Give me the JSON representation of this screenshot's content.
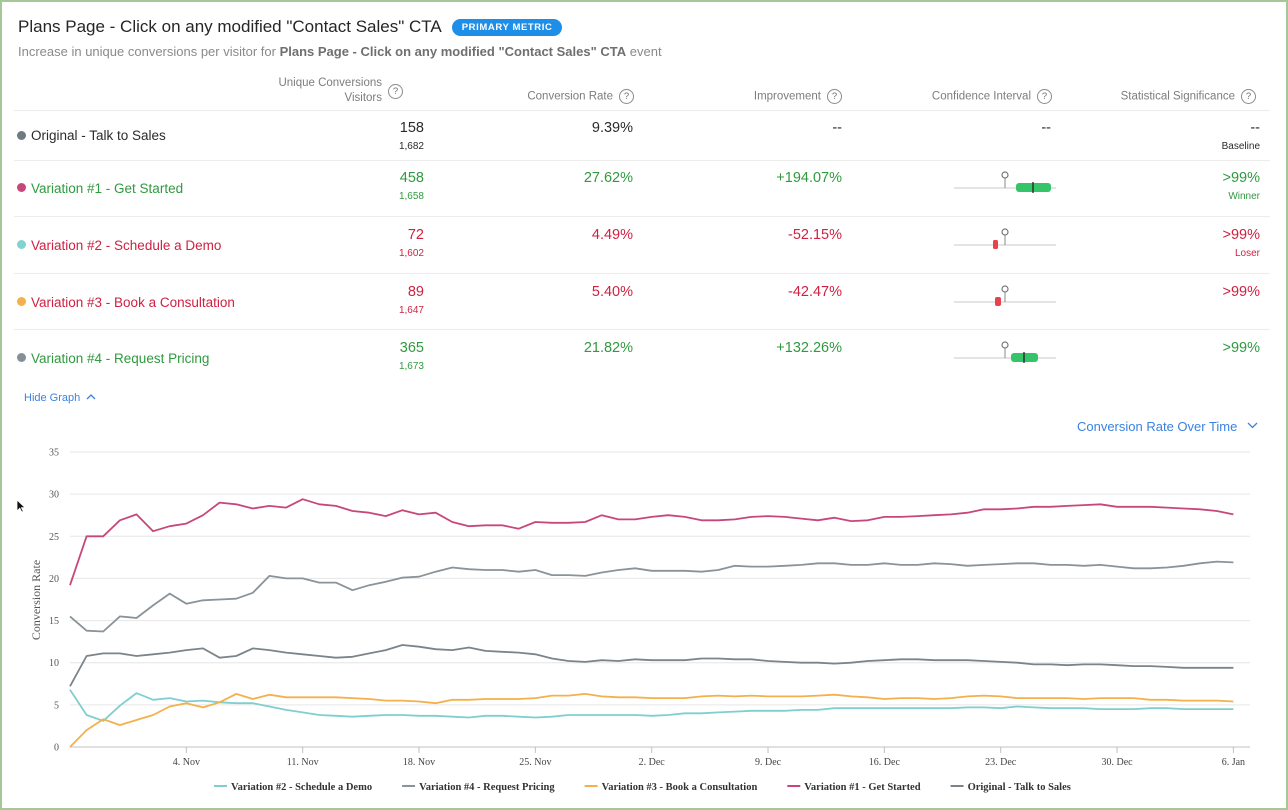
{
  "header": {
    "title": "Plans Page - Click on any modified \"Contact Sales\" CTA",
    "badge": "PRIMARY METRIC",
    "subtitle_prefix": "Increase in unique conversions per visitor for ",
    "subtitle_bold": "Plans Page - Click on any modified \"Contact Sales\" CTA",
    "subtitle_suffix": " event"
  },
  "columns": {
    "conversions_line1": "Unique Conversions",
    "conversions_line2": "Visitors",
    "rate": "Conversion Rate",
    "improvement": "Improvement",
    "ci": "Confidence Interval",
    "significance": "Statistical Significance",
    "help": "?"
  },
  "rows": [
    {
      "name": "Original - Talk to Sales",
      "dot": "#6e7b80",
      "color": "#2b2b2b",
      "conversions": "158",
      "visitors": "1,682",
      "rate": "9.39%",
      "improvement": "--",
      "ci": "--",
      "significance": "--",
      "verdict": "Baseline",
      "verdict_color": "#2b2b2b",
      "sub_color": "#2b2b2b"
    },
    {
      "name": "Variation #1 - Get Started",
      "dot": "#c8477a",
      "color": "#2f9a3f",
      "conversions": "458",
      "visitors": "1,658",
      "rate": "27.62%",
      "improvement": "+194.07%",
      "significance": ">99%",
      "verdict": "Winner",
      "verdict_color": "#2f9a3f",
      "sub_color": "#2f9a3f"
    },
    {
      "name": "Variation #2 - Schedule a Demo",
      "dot": "#7fd3d3",
      "color": "#cf2142",
      "conversions": "72",
      "visitors": "1,602",
      "rate": "4.49%",
      "improvement": "-52.15%",
      "significance": ">99%",
      "verdict": "Loser",
      "verdict_color": "#cf2142",
      "sub_color": "#cf2142"
    },
    {
      "name": "Variation #3 - Book a Consultation",
      "dot": "#f4b04a",
      "color": "#cf2142",
      "conversions": "89",
      "visitors": "1,647",
      "rate": "5.40%",
      "improvement": "-42.47%",
      "significance": ">99%",
      "verdict": "",
      "verdict_color": "#cf2142",
      "sub_color": "#cf2142"
    },
    {
      "name": "Variation #4 - Request Pricing",
      "dot": "#868e96",
      "color": "#2f9a3f",
      "conversions": "365",
      "visitors": "1,673",
      "rate": "21.82%",
      "improvement": "+132.26%",
      "significance": ">99%",
      "verdict": "",
      "verdict_color": "#2f9a3f",
      "sub_color": "#2f9a3f"
    }
  ],
  "controls": {
    "hide_graph": "Hide Graph",
    "metric_select": "Conversion Rate Over Time"
  },
  "chart_data": {
    "type": "line",
    "ylabel": "Conversion Rate",
    "ylim": [
      0,
      35
    ],
    "yticks": [
      0,
      5,
      10,
      15,
      20,
      25,
      30,
      35
    ],
    "xlim": [
      "2021-10-28",
      "2022-01-07"
    ],
    "xticks": [
      {
        "date": "2021-11-04",
        "label": "4. Nov"
      },
      {
        "date": "2021-11-11",
        "label": "11. Nov"
      },
      {
        "date": "2021-11-18",
        "label": "18. Nov"
      },
      {
        "date": "2021-11-25",
        "label": "25. Nov"
      },
      {
        "date": "2021-12-02",
        "label": "2. Dec"
      },
      {
        "date": "2021-12-09",
        "label": "9. Dec"
      },
      {
        "date": "2021-12-16",
        "label": "16. Dec"
      },
      {
        "date": "2021-12-23",
        "label": "23. Dec"
      },
      {
        "date": "2021-12-30",
        "label": "30. Dec"
      },
      {
        "date": "2022-01-06",
        "label": "6. Jan"
      }
    ],
    "x_start": "2021-10-28",
    "x_step_days": 1,
    "grid": "horizontal",
    "legend_position": "bottom",
    "series": [
      {
        "name": "Variation #2 - Schedule a Demo",
        "color": "#7fcfd0",
        "values": [
          6.8,
          3.8,
          3.1,
          4.9,
          6.4,
          5.6,
          5.8,
          5.4,
          5.5,
          5.3,
          5.2,
          5.2,
          4.8,
          4.4,
          4.1,
          3.8,
          3.7,
          3.6,
          3.7,
          3.8,
          3.8,
          3.7,
          3.7,
          3.6,
          3.5,
          3.7,
          3.7,
          3.6,
          3.5,
          3.6,
          3.8,
          3.8,
          3.8,
          3.8,
          3.8,
          3.7,
          3.8,
          4.0,
          4.0,
          4.1,
          4.2,
          4.3,
          4.3,
          4.3,
          4.4,
          4.4,
          4.6,
          4.6,
          4.6,
          4.6,
          4.6,
          4.6,
          4.6,
          4.6,
          4.7,
          4.7,
          4.6,
          4.8,
          4.7,
          4.6,
          4.6,
          4.6,
          4.5,
          4.5,
          4.5,
          4.6,
          4.6,
          4.5,
          4.5,
          4.5,
          4.5
        ]
      },
      {
        "name": "Variation #4 - Request Pricing",
        "color": "#8a9399",
        "values": [
          15.5,
          13.8,
          13.7,
          15.5,
          15.3,
          16.8,
          18.2,
          17.0,
          17.4,
          17.5,
          17.6,
          18.3,
          20.3,
          20.0,
          20.0,
          19.5,
          19.5,
          18.6,
          19.2,
          19.6,
          20.1,
          20.2,
          20.8,
          21.3,
          21.1,
          21.0,
          21.0,
          20.8,
          21.0,
          20.4,
          20.4,
          20.3,
          20.7,
          21.0,
          21.2,
          20.9,
          20.9,
          20.9,
          20.8,
          21.0,
          21.5,
          21.4,
          21.4,
          21.5,
          21.6,
          21.8,
          21.8,
          21.6,
          21.6,
          21.8,
          21.6,
          21.6,
          21.8,
          21.7,
          21.5,
          21.6,
          21.7,
          21.8,
          21.8,
          21.6,
          21.6,
          21.5,
          21.6,
          21.4,
          21.2,
          21.2,
          21.3,
          21.5,
          21.8,
          22.0,
          21.9
        ]
      },
      {
        "name": "Variation #3 - Book a Consultation",
        "color": "#f4b04a",
        "values": [
          0,
          2.0,
          3.3,
          2.6,
          3.2,
          3.8,
          4.8,
          5.2,
          4.7,
          5.3,
          6.3,
          5.7,
          6.2,
          5.9,
          5.9,
          5.9,
          5.9,
          5.8,
          5.7,
          5.5,
          5.5,
          5.4,
          5.2,
          5.6,
          5.6,
          5.7,
          5.7,
          5.7,
          5.8,
          6.1,
          6.1,
          6.3,
          6.0,
          5.9,
          5.9,
          5.8,
          5.8,
          5.8,
          6.0,
          6.1,
          6.0,
          6.1,
          6.0,
          6.0,
          6.0,
          6.1,
          6.2,
          6.0,
          5.9,
          5.7,
          5.8,
          5.8,
          5.7,
          5.8,
          6.0,
          6.1,
          6.0,
          5.8,
          5.8,
          5.8,
          5.8,
          5.7,
          5.8,
          5.8,
          5.8,
          5.6,
          5.6,
          5.5,
          5.5,
          5.5,
          5.4
        ]
      },
      {
        "name": "Variation #1 - Get Started",
        "color": "#c8477a",
        "values": [
          19.2,
          25.0,
          25.0,
          26.9,
          27.6,
          25.6,
          26.2,
          26.5,
          27.5,
          29.0,
          28.8,
          28.3,
          28.6,
          28.4,
          29.4,
          28.8,
          28.6,
          28.0,
          27.8,
          27.4,
          28.1,
          27.6,
          27.8,
          26.7,
          26.2,
          26.3,
          26.3,
          25.9,
          26.7,
          26.6,
          26.6,
          26.7,
          27.5,
          27.0,
          27.0,
          27.3,
          27.5,
          27.3,
          26.9,
          26.9,
          27.0,
          27.3,
          27.4,
          27.3,
          27.1,
          26.9,
          27.2,
          26.8,
          26.9,
          27.3,
          27.3,
          27.4,
          27.5,
          27.6,
          27.8,
          28.2,
          28.2,
          28.3,
          28.5,
          28.5,
          28.6,
          28.7,
          28.8,
          28.5,
          28.5,
          28.5,
          28.4,
          28.3,
          28.2,
          28.0,
          27.6
        ]
      },
      {
        "name": "Original - Talk to Sales",
        "color": "#7a848a",
        "values": [
          7.2,
          10.8,
          11.1,
          11.1,
          10.8,
          11.0,
          11.2,
          11.5,
          11.7,
          10.6,
          10.8,
          11.7,
          11.5,
          11.2,
          11.0,
          10.8,
          10.6,
          10.7,
          11.1,
          11.5,
          12.1,
          11.9,
          11.6,
          11.5,
          11.8,
          11.4,
          11.3,
          11.2,
          11.0,
          10.5,
          10.2,
          10.1,
          10.3,
          10.2,
          10.4,
          10.3,
          10.3,
          10.3,
          10.5,
          10.5,
          10.4,
          10.4,
          10.2,
          10.1,
          10.0,
          10.0,
          9.9,
          10.0,
          10.2,
          10.3,
          10.4,
          10.4,
          10.3,
          10.3,
          10.3,
          10.2,
          10.1,
          10.0,
          9.8,
          9.8,
          9.7,
          9.8,
          9.8,
          9.7,
          9.6,
          9.6,
          9.5,
          9.4,
          9.4,
          9.4,
          9.4
        ]
      }
    ]
  }
}
